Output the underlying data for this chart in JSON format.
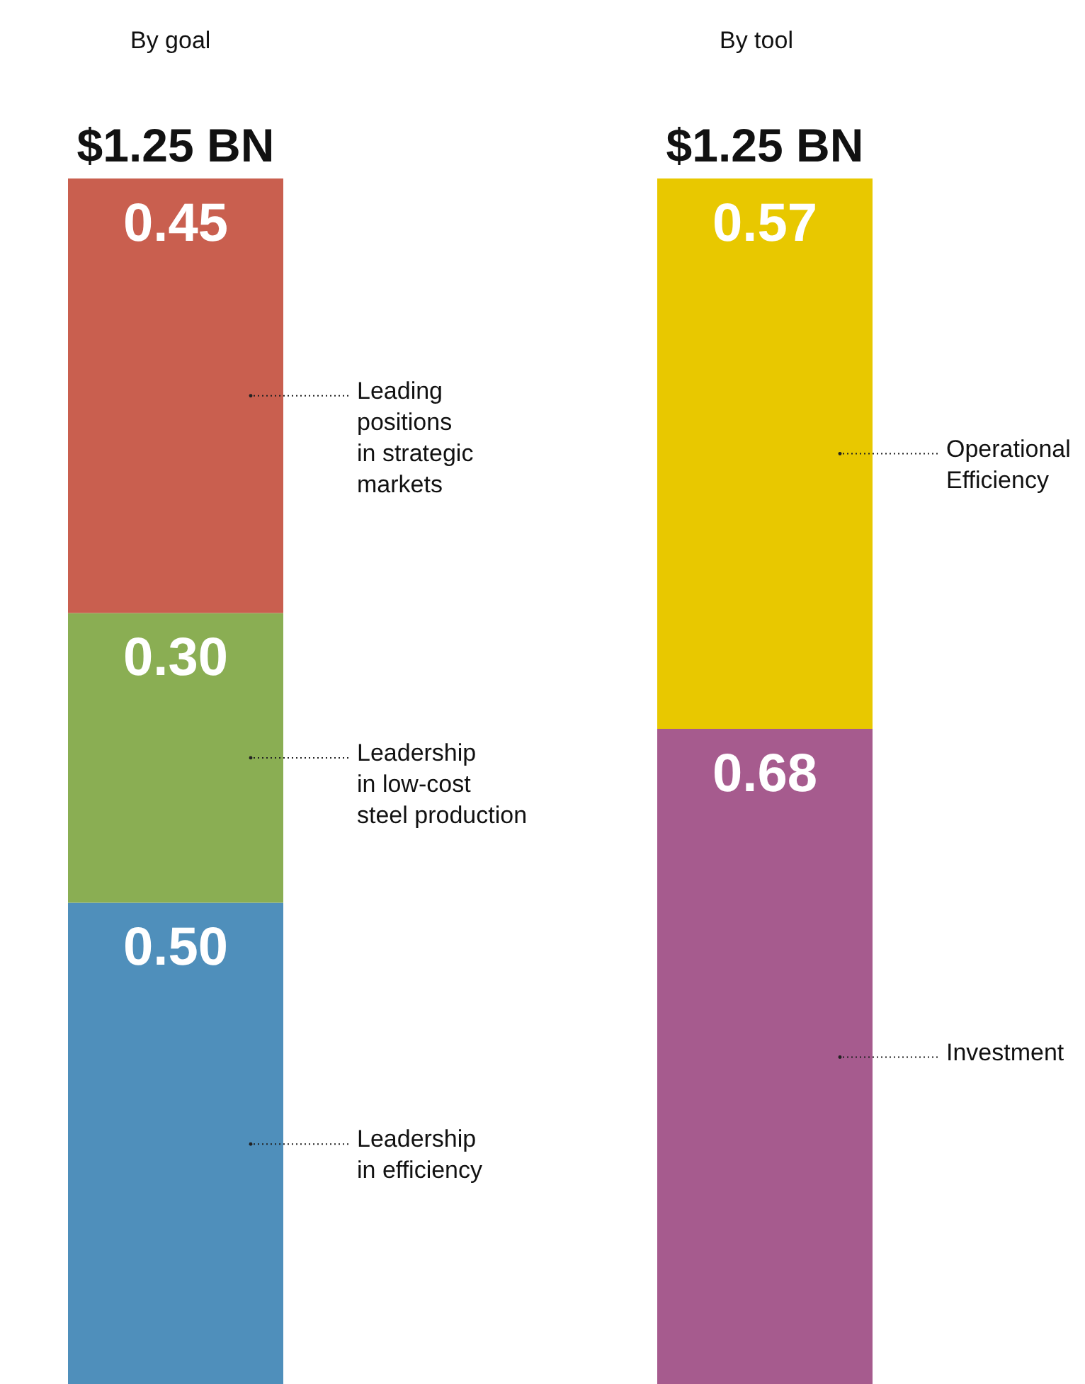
{
  "chart_data": [
    {
      "type": "bar",
      "title": "By goal",
      "totals": [
        "$1.25 BN"
      ],
      "categories": [
        null
      ],
      "stacked": true,
      "tick_labels": false,
      "series": [
        {
          "name": "Leadership\nin efficiency",
          "color": "#4f8fbb",
          "values": [
            0.5
          ],
          "value_labels": [
            "0.50"
          ]
        },
        {
          "name": "Leadership\nin low-cost\nsteel production",
          "color": "#8aae53",
          "values": [
            0.3
          ],
          "value_labels": [
            "0.30"
          ]
        },
        {
          "name": "Leading\npositions\nin strategic\nmarkets",
          "color": "#c95f4f",
          "values": [
            0.45
          ],
          "value_labels": [
            "0.45"
          ]
        }
      ]
    },
    {
      "type": "bar",
      "title": "By tool",
      "totals": [
        "$1.25 BN"
      ],
      "categories": [
        null
      ],
      "stacked": true,
      "tick_labels": false,
      "series": [
        {
          "name": "Investment",
          "color": "#a65b8e",
          "values": [
            0.68
          ],
          "value_labels": [
            "0.68"
          ]
        },
        {
          "name": "Operational\nEfficiency",
          "color": "#e8c800",
          "values": [
            0.57
          ],
          "value_labels": [
            "0.57"
          ]
        }
      ]
    }
  ]
}
